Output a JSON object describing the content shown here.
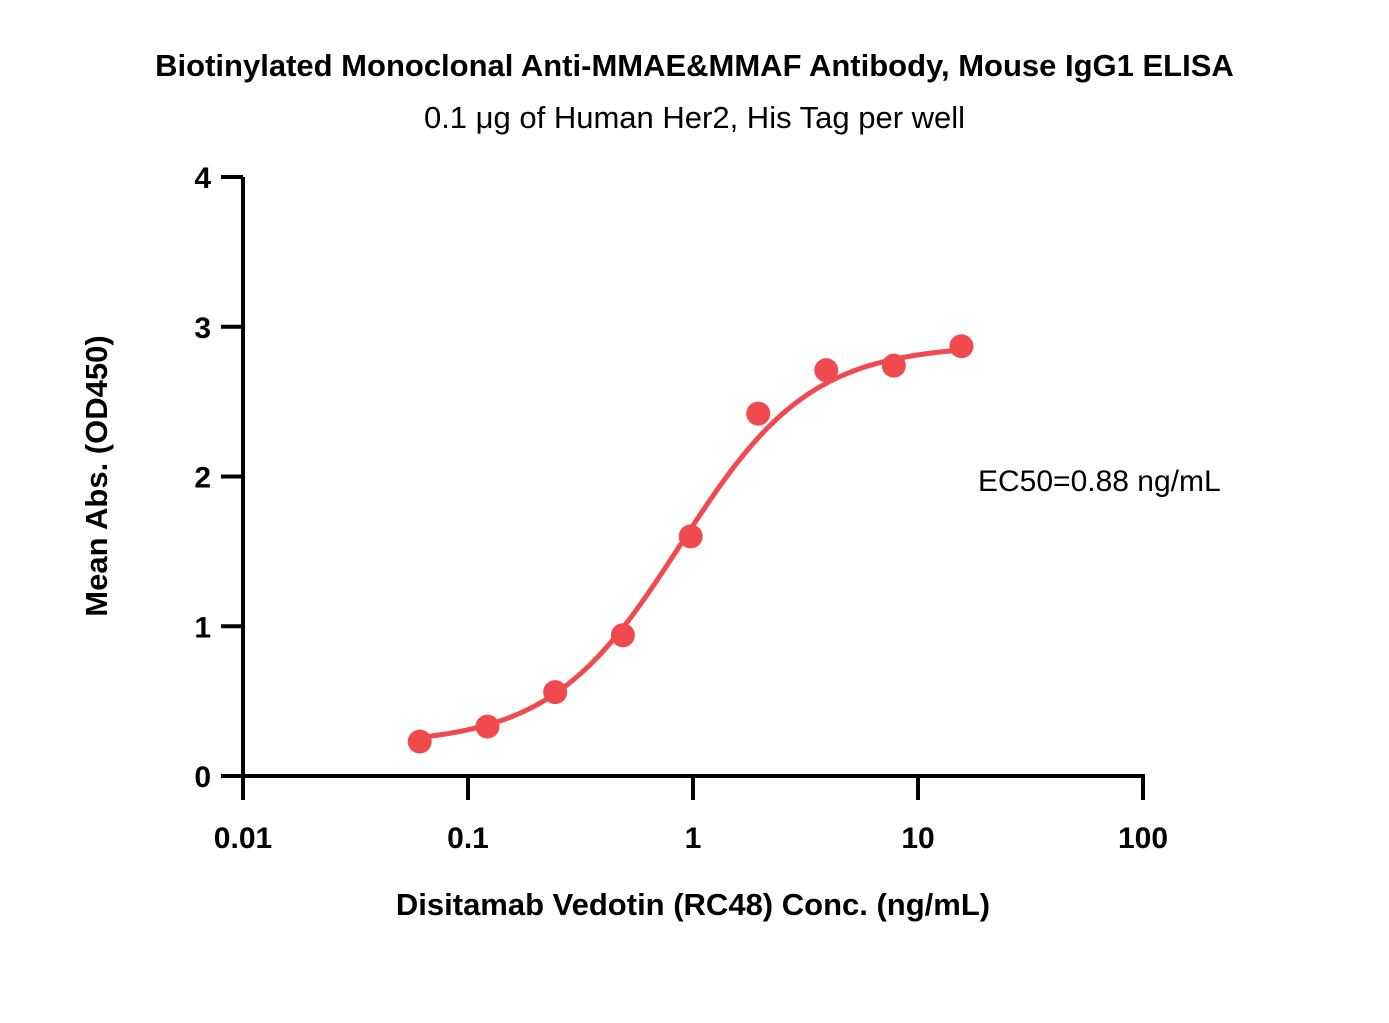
{
  "chart_data": {
    "type": "scatter",
    "title": "Biotinylated Monoclonal Anti-MMAE&MMAF Antibody, Mouse IgG1 ELISA",
    "subtitle": "0.1 μg of Human Her2, His Tag per well",
    "xlabel": "Disitamab Vedotin (RC48) Conc. (ng/mL)",
    "ylabel": "Mean Abs. (OD450)",
    "x_scale": "log",
    "xlim": [
      0.01,
      100
    ],
    "ylim": [
      0,
      4
    ],
    "x_ticks": [
      0.01,
      0.1,
      1,
      10,
      100
    ],
    "x_tick_labels": [
      "0.01",
      "0.1",
      "1",
      "10",
      "100"
    ],
    "y_ticks": [
      0,
      1,
      2,
      3,
      4
    ],
    "y_tick_labels": [
      "0",
      "1",
      "2",
      "3",
      "4"
    ],
    "grid": false,
    "color": "#f04a4f",
    "series": [
      {
        "x": [
          0.061,
          0.122,
          0.244,
          0.488,
          0.977,
          1.95,
          3.91,
          7.81,
          15.6
        ],
        "y": [
          0.23,
          0.33,
          0.56,
          0.94,
          1.6,
          2.42,
          2.71,
          2.74,
          2.87
        ],
        "fit": "4PL",
        "fit_params": {
          "bottom": 0.21,
          "top": 2.88,
          "ec50": 0.88,
          "hill": 1.5
        }
      }
    ],
    "annotations": [
      {
        "text": "EC50=0.88 ng/mL"
      }
    ]
  }
}
